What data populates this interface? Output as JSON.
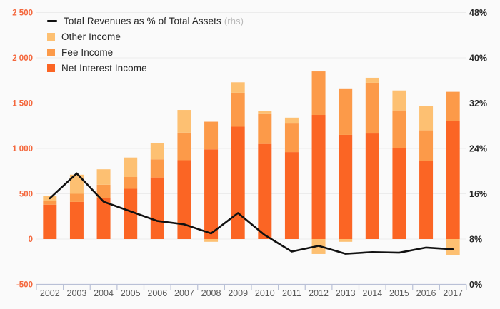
{
  "colors": {
    "background": "#fafafa",
    "grid": "#ececec",
    "axis_line": "#b9c0d6",
    "left_axis_labels": "#f4673c",
    "right_axis_labels": "#262626",
    "x_axis_labels": "#595959",
    "legend_text": "#262626",
    "legend_suffix": "#b9b9b9"
  },
  "legend": {
    "line_suffix": "(rhs)"
  },
  "chart_data": {
    "type": "bar",
    "subtype": "stacked-bar-with-line",
    "categories": [
      "2002",
      "2003",
      "2004",
      "2005",
      "2006",
      "2007",
      "2008",
      "2009",
      "2010",
      "2011",
      "2012",
      "2013",
      "2014",
      "2015",
      "2016",
      "2017"
    ],
    "series": [
      {
        "name": "Net Interest Income",
        "type": "bar",
        "stack": "income",
        "color": "#fb6524",
        "values": [
          380,
          410,
          450,
          555,
          680,
          870,
          990,
          1240,
          1050,
          960,
          1370,
          1150,
          1165,
          1000,
          860,
          1305
        ]
      },
      {
        "name": "Fee Income",
        "type": "bar",
        "stack": "income",
        "color": "#fc9a49",
        "values": [
          45,
          90,
          150,
          130,
          200,
          305,
          305,
          375,
          330,
          315,
          480,
          505,
          560,
          420,
          340,
          320
        ]
      },
      {
        "name": "Other Income",
        "type": "bar",
        "stack": "income",
        "color": "#fdc072",
        "values": [
          50,
          210,
          170,
          215,
          180,
          250,
          -30,
          115,
          30,
          65,
          -165,
          -30,
          55,
          220,
          270,
          -175
        ]
      },
      {
        "name": "Total Revenues as % of Total Assets",
        "type": "line",
        "axis": "right",
        "color": "#111111",
        "values": [
          15.2,
          19.6,
          14.6,
          12.9,
          11.2,
          10.6,
          9.0,
          12.6,
          8.7,
          5.8,
          6.8,
          5.4,
          5.7,
          5.6,
          6.5,
          6.2
        ]
      }
    ],
    "left_axis": {
      "min": -500,
      "max": 2500,
      "step": 500,
      "labels": [
        "-500",
        "0",
        "500",
        "1 000",
        "1 500",
        "2 000",
        "2 500"
      ]
    },
    "right_axis": {
      "min": 0,
      "max": 48,
      "step": 8,
      "labels": [
        "0%",
        "8%",
        "16%",
        "24%",
        "32%",
        "40%",
        "48%"
      ]
    },
    "grid": true,
    "legend_position": "top-left"
  }
}
